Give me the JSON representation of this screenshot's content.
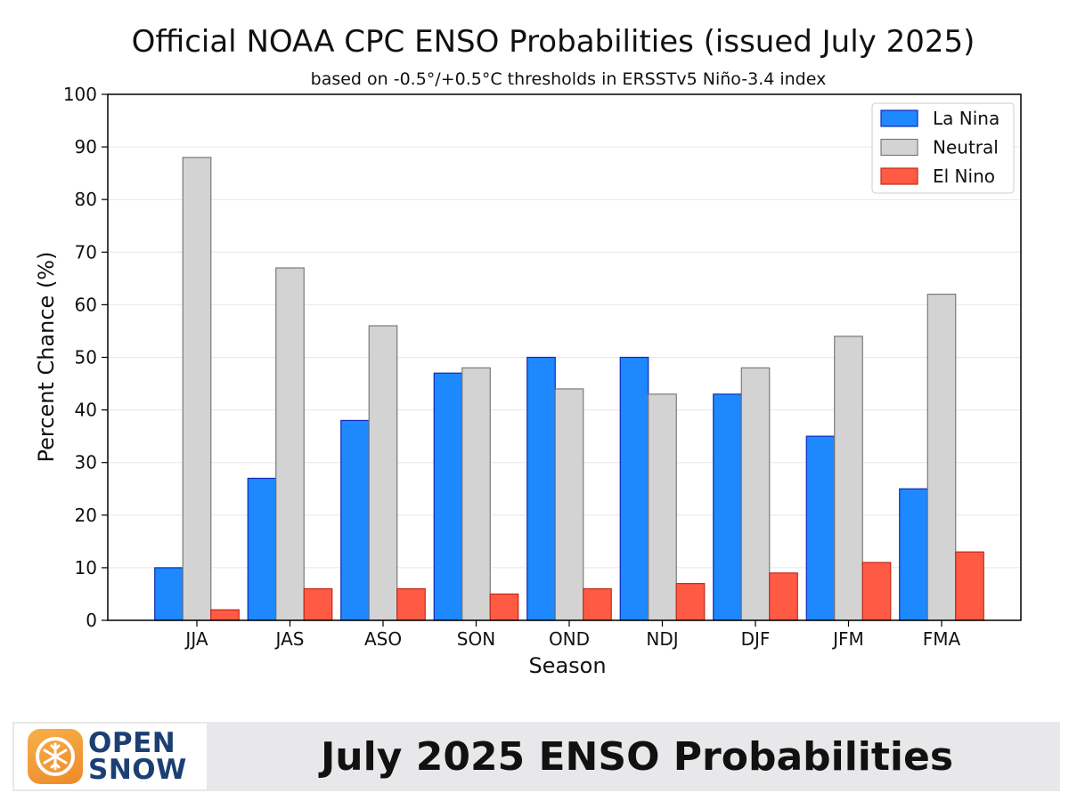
{
  "chart_data": {
    "type": "bar",
    "title": "Official NOAA CPC ENSO Probabilities (issued July 2025)",
    "subtitle": "based on -0.5°/+0.5°C thresholds in ERSSTv5 Niño-3.4 index",
    "xlabel": "Season",
    "ylabel": "Percent Chance (%)",
    "ylim": [
      0,
      100
    ],
    "yticks": [
      "0",
      "10",
      "20",
      "30",
      "40",
      "50",
      "60",
      "70",
      "80",
      "90",
      "100"
    ],
    "categories": [
      "JJA",
      "JAS",
      "ASO",
      "SON",
      "OND",
      "NDJ",
      "DJF",
      "JFM",
      "FMA"
    ],
    "series": [
      {
        "name": "La Nina",
        "color": "#1e88ff",
        "edge": "#0d2bb8",
        "values": [
          10,
          27,
          38,
          47,
          50,
          50,
          43,
          35,
          25
        ]
      },
      {
        "name": "Neutral",
        "color": "#d3d3d3",
        "edge": "#7a7a7a",
        "values": [
          88,
          67,
          56,
          48,
          44,
          43,
          48,
          54,
          62
        ]
      },
      {
        "name": "El Nino",
        "color": "#ff5a44",
        "edge": "#c22a1a",
        "values": [
          2,
          6,
          6,
          5,
          6,
          7,
          9,
          11,
          13
        ]
      }
    ],
    "grid": true,
    "legend_position": "top-right"
  },
  "footer": {
    "logo_line1": "OPEN",
    "logo_line2": "SNOW",
    "logo_icon": "snowflake-icon",
    "caption": "July 2025 ENSO Probabilities",
    "accent_color": "#f19a33",
    "bar_color": "#e8e8ea"
  }
}
